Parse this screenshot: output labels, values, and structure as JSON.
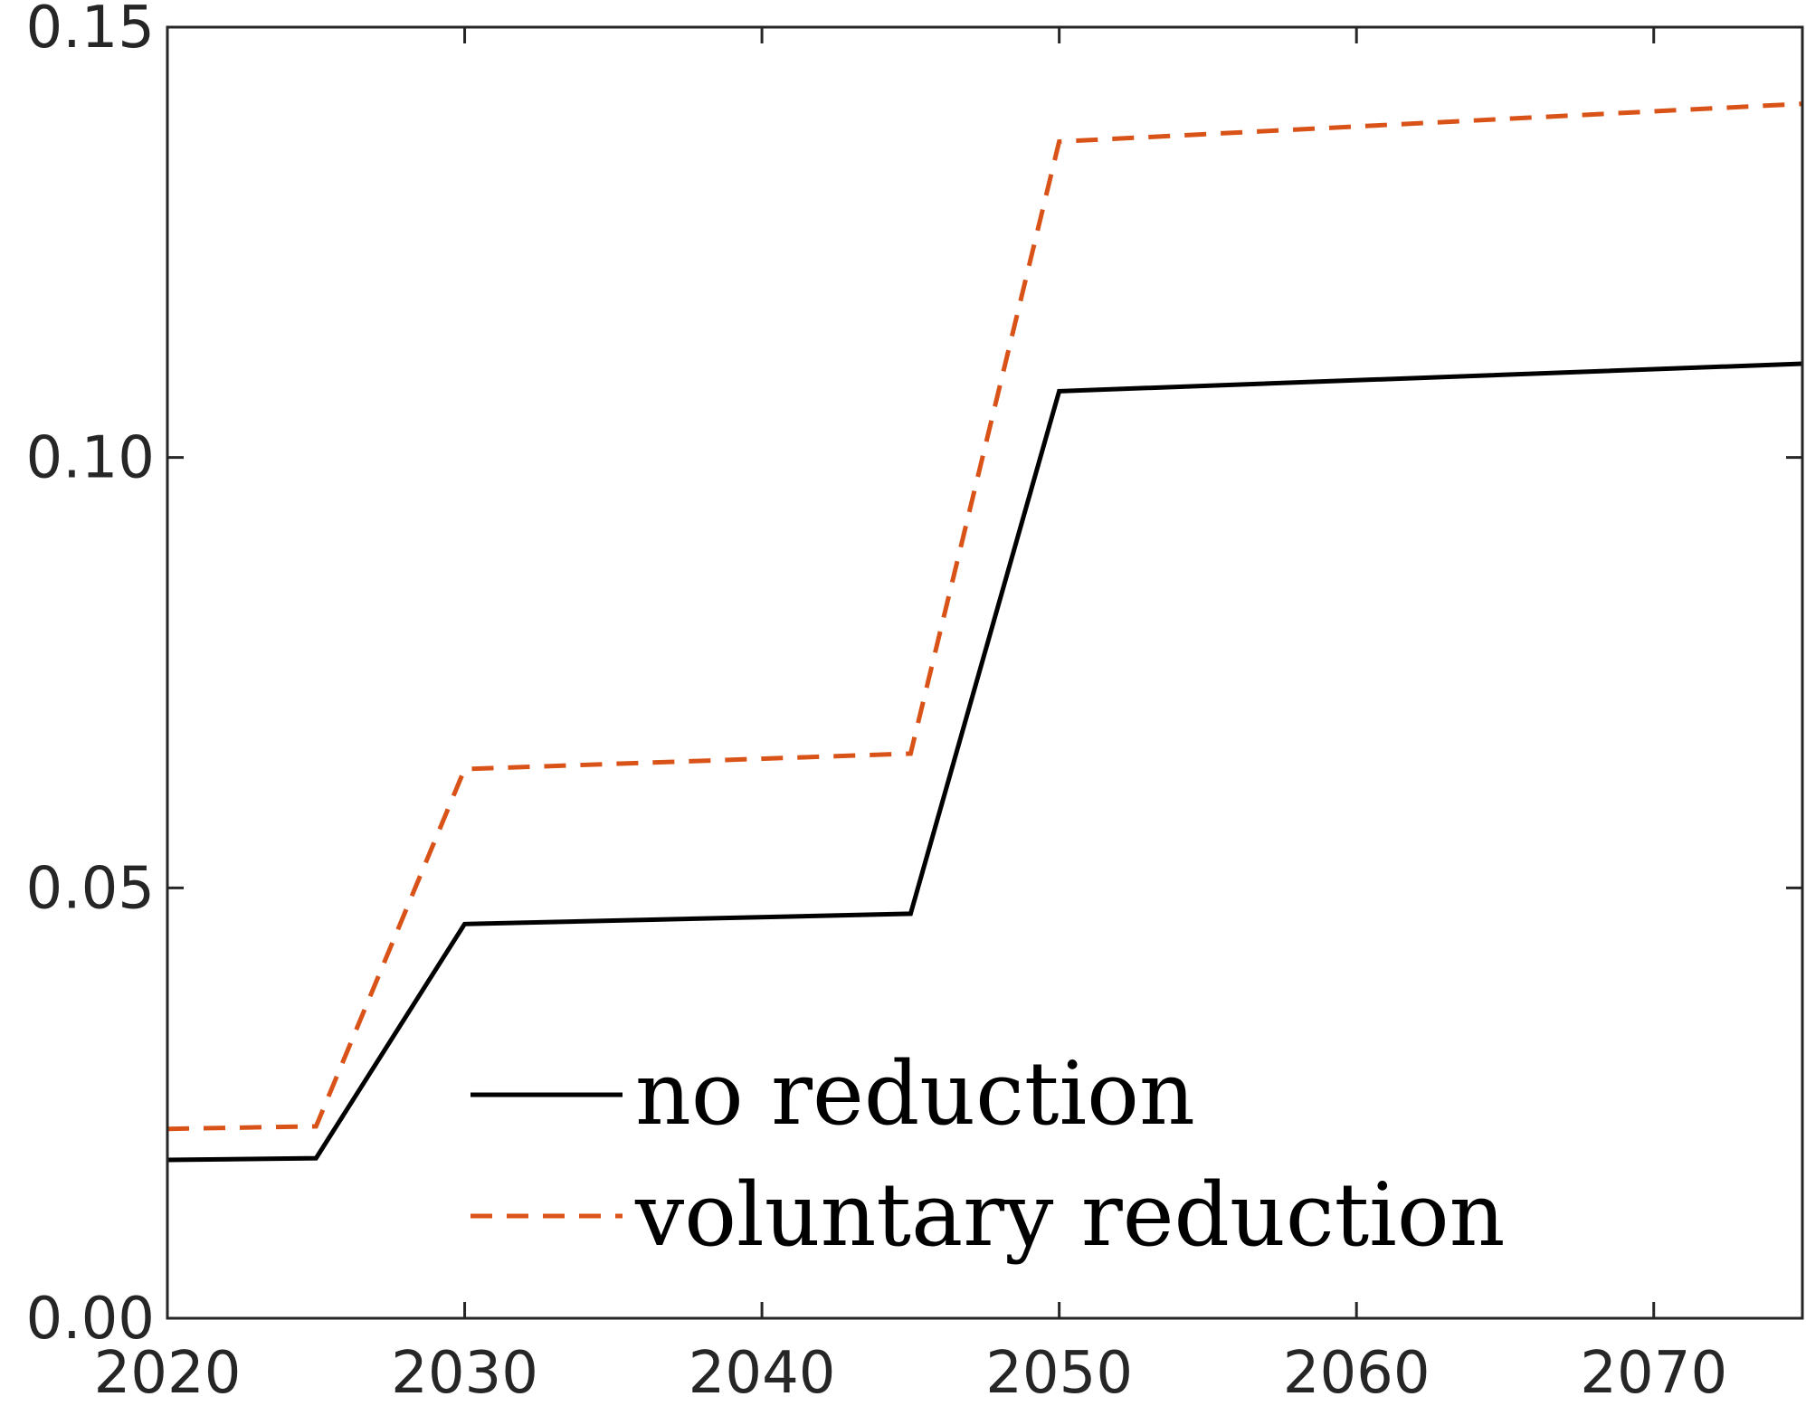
{
  "chart_data": {
    "type": "line",
    "title": "",
    "xlabel": "",
    "ylabel": "",
    "xlim": [
      2020,
      2075
    ],
    "ylim": [
      0.0,
      0.15
    ],
    "xticks": [
      2020,
      2030,
      2040,
      2050,
      2060,
      2070
    ],
    "yticks": [
      0.0,
      0.05,
      0.1,
      0.15
    ],
    "xtick_labels": [
      "2020",
      "2030",
      "2040",
      "2050",
      "2060",
      "2070"
    ],
    "ytick_labels": [
      "0.00",
      "0.05",
      "0.10",
      "0.15"
    ],
    "grid": false,
    "legend_position": "bottom-center",
    "series": [
      {
        "name": "no reduction",
        "color": "#000000",
        "style": "solid",
        "x": [
          2020,
          2025,
          2030,
          2045,
          2050,
          2075
        ],
        "y": [
          0.0184,
          0.0186,
          0.0458,
          0.047,
          0.1077,
          0.1109
        ]
      },
      {
        "name": "voluntary reduction",
        "color": "#D95319",
        "style": "dashed",
        "x": [
          2020,
          2025,
          2030,
          2045,
          2050,
          2075
        ],
        "y": [
          0.022,
          0.0223,
          0.0638,
          0.0656,
          0.1367,
          0.1411
        ]
      }
    ]
  }
}
